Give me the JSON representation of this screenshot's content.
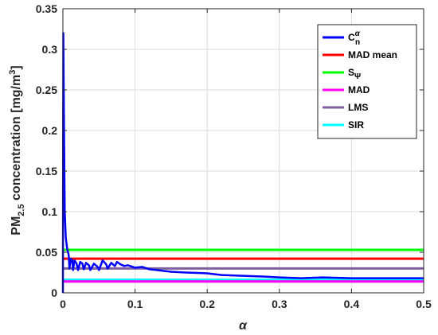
{
  "chart_data": {
    "type": "line",
    "xlabel_symbol": "α",
    "ylabel": {
      "prefix": "PM",
      "sub": "2.5",
      "middle": " concentration [mg/m",
      "sup": "3",
      "suffix": "]"
    },
    "xlim": [
      0,
      0.5
    ],
    "ylim": [
      0,
      0.35
    ],
    "xticks": [
      0,
      0.1,
      0.2,
      0.3,
      0.4,
      0.5
    ],
    "xtick_labels": [
      "0",
      "0.1",
      "0.2",
      "0.3",
      "0.4",
      "0.5"
    ],
    "yticks": [
      0,
      0.05,
      0.1,
      0.15,
      0.2,
      0.25,
      0.3,
      0.35
    ],
    "ytick_labels": [
      "0",
      "0.05",
      "0.1",
      "0.15",
      "0.2",
      "0.25",
      "0.3",
      "0.35"
    ],
    "grid": true,
    "legend_position": "top-right",
    "series": [
      {
        "name": "C",
        "name_sub": "n",
        "name_sup": "α",
        "color": "#0000ff",
        "kind": "curve",
        "points": [
          [
            0.0,
            0.0
          ],
          [
            0.0006,
            0.32
          ],
          [
            0.0015,
            0.2
          ],
          [
            0.0025,
            0.1
          ],
          [
            0.004,
            0.068
          ],
          [
            0.006,
            0.054
          ],
          [
            0.008,
            0.047
          ],
          [
            0.009,
            0.03
          ],
          [
            0.011,
            0.042
          ],
          [
            0.013,
            0.04
          ],
          [
            0.014,
            0.028
          ],
          [
            0.016,
            0.04
          ],
          [
            0.019,
            0.036
          ],
          [
            0.021,
            0.028
          ],
          [
            0.024,
            0.038
          ],
          [
            0.027,
            0.036
          ],
          [
            0.029,
            0.029
          ],
          [
            0.032,
            0.037
          ],
          [
            0.036,
            0.034
          ],
          [
            0.038,
            0.028
          ],
          [
            0.043,
            0.036
          ],
          [
            0.048,
            0.032
          ],
          [
            0.05,
            0.028
          ],
          [
            0.055,
            0.04
          ],
          [
            0.06,
            0.035
          ],
          [
            0.062,
            0.03
          ],
          [
            0.067,
            0.037
          ],
          [
            0.072,
            0.033
          ],
          [
            0.075,
            0.038
          ],
          [
            0.08,
            0.035
          ],
          [
            0.085,
            0.033
          ],
          [
            0.09,
            0.034
          ],
          [
            0.1,
            0.031
          ],
          [
            0.11,
            0.032
          ],
          [
            0.12,
            0.029
          ],
          [
            0.13,
            0.028
          ],
          [
            0.14,
            0.027
          ],
          [
            0.15,
            0.026
          ],
          [
            0.17,
            0.025
          ],
          [
            0.2,
            0.024
          ],
          [
            0.22,
            0.022
          ],
          [
            0.25,
            0.021
          ],
          [
            0.28,
            0.02
          ],
          [
            0.3,
            0.019
          ],
          [
            0.33,
            0.018
          ],
          [
            0.36,
            0.019
          ],
          [
            0.4,
            0.018
          ],
          [
            0.44,
            0.018
          ],
          [
            0.47,
            0.018
          ],
          [
            0.5,
            0.018
          ]
        ]
      },
      {
        "name": "MAD mean",
        "color": "#ff0000",
        "kind": "hline",
        "value": 0.042
      },
      {
        "name": "S",
        "name_sub": "Ψ",
        "color": "#00ff00",
        "kind": "hline",
        "value": 0.053
      },
      {
        "name": "MAD",
        "color": "#ff00ff",
        "kind": "hline",
        "value": 0.014
      },
      {
        "name": "LMS",
        "color": "#7e60a0",
        "kind": "hline",
        "value": 0.03
      },
      {
        "name": "SIR",
        "color": "#00ffff",
        "kind": "hline",
        "value": 0.016
      }
    ]
  }
}
